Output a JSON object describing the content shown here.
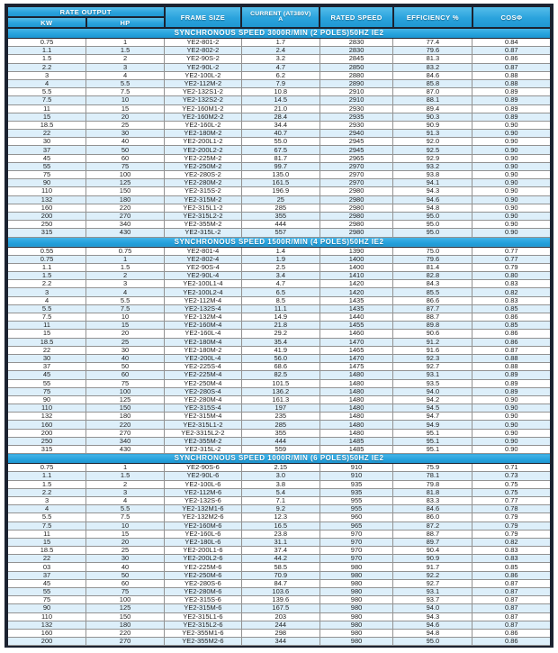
{
  "table": {
    "headers": {
      "rate_output": "RATE OUTPUT",
      "kw": "KW",
      "hp": "HP",
      "frame_size": "FRAME SIZE",
      "current_line1": "CURRENT  (AT380V)",
      "current_line2": "A",
      "rated_speed": "RATED SPEED",
      "efficiency": "EFFICIENCY %",
      "cos_phi": "COSΦ"
    },
    "column_keys": [
      "kw",
      "hp",
      "frame-size",
      "current",
      "rated-speed",
      "efficiency",
      "cos-phi"
    ],
    "sections": [
      {
        "title": "SYNCHRONOUS SPEED 3000R/MIN (2 POLES)50HZ  IE2",
        "rows": [
          [
            "0.75",
            "1",
            "YE2-801-2",
            "1.7",
            "2830",
            "77.4",
            "0.84"
          ],
          [
            "1.1",
            "1.5",
            "YE2-802-2",
            "2.4",
            "2830",
            "79.6",
            "0.87"
          ],
          [
            "1.5",
            "2",
            "YE2-90S-2",
            "3.2",
            "2845",
            "81.3",
            "0.86"
          ],
          [
            "2.2",
            "3",
            "YE2-90L-2",
            "4.7",
            "2850",
            "83.2",
            "0.87"
          ],
          [
            "3",
            "4",
            "YE2-100L-2",
            "6.2",
            "2880",
            "84.6",
            "0.88"
          ],
          [
            "4",
            "5.5",
            "YE2-112M-2",
            "7.9",
            "2890",
            "85.8",
            "0.88"
          ],
          [
            "5.5",
            "7.5",
            "YE2-132S1-2",
            "10.8",
            "2910",
            "87.0",
            "0.89"
          ],
          [
            "7.5",
            "10",
            "YE2-132S2-2",
            "14.5",
            "2910",
            "88.1",
            "0.89"
          ],
          [
            "11",
            "15",
            "YE2-160M1-2",
            "21.0",
            "2930",
            "89.4",
            "0.89"
          ],
          [
            "15",
            "20",
            "YE2-160M2-2",
            "28.4",
            "2935",
            "90.3",
            "0.89"
          ],
          [
            "18.5",
            "25",
            "YE2-160L-2",
            "34.4",
            "2930",
            "90.9",
            "0.90"
          ],
          [
            "22",
            "30",
            "YE2-180M-2",
            "40.7",
            "2940",
            "91.3",
            "0.90"
          ],
          [
            "30",
            "40",
            "YE2-200L1-2",
            "55.0",
            "2945",
            "92.0",
            "0.90"
          ],
          [
            "37",
            "50",
            "YE2-200L2-2",
            "67.5",
            "2945",
            "92.5",
            "0.90"
          ],
          [
            "45",
            "60",
            "YE2-225M-2",
            "81.7",
            "2965",
            "92.9",
            "0.90"
          ],
          [
            "55",
            "75",
            "YE2-250M-2",
            "99.7",
            "2970",
            "93.2",
            "0.90"
          ],
          [
            "75",
            "100",
            "YE2-280S-2",
            "135.0",
            "2970",
            "93.8",
            "0.90"
          ],
          [
            "90",
            "125",
            "YE2-280M-2",
            "161.5",
            "2970",
            "94.1",
            "0.90"
          ],
          [
            "110",
            "150",
            "YE2-315S-2",
            "196.9",
            "2980",
            "94.3",
            "0.90"
          ],
          [
            "132",
            "180",
            "YE2-315M-2",
            "25",
            "2980",
            "94.6",
            "0.90"
          ],
          [
            "160",
            "220",
            "YE2-315L1-2",
            "285",
            "2980",
            "94.8",
            "0.90"
          ],
          [
            "200",
            "270",
            "YE2-315L2-2",
            "355",
            "2980",
            "95.0",
            "0.90"
          ],
          [
            "250",
            "340",
            "YE2-355M-2",
            "444",
            "2980",
            "95.0",
            "0.90"
          ],
          [
            "315",
            "430",
            "YE2-315L-2",
            "557",
            "2980",
            "95.0",
            "0.90"
          ]
        ]
      },
      {
        "title": "SYNCHRONOUS SPEED 1500R/MIN (4 POLES)50HZ  IE2",
        "rows": [
          [
            "0.55",
            "0.75",
            "YE2-801-4",
            "1.4",
            "1390",
            "75.0",
            "0.77"
          ],
          [
            "0.75",
            "1",
            "YE2-802-4",
            "1.9",
            "1400",
            "79.6",
            "0.77"
          ],
          [
            "1.1",
            "1.5",
            "YE2-90S-4",
            "2.5",
            "1400",
            "81.4",
            "0.79"
          ],
          [
            "1.5",
            "2",
            "YE2-90L-4",
            "3.4",
            "1410",
            "82.8",
            "0.80"
          ],
          [
            "2.2",
            "3",
            "YE2-100L1-4",
            "4.7",
            "1420",
            "84.3",
            "0.83"
          ],
          [
            "3",
            "4",
            "YE2-100L2-4",
            "6.5",
            "1420",
            "85.5",
            "0.82"
          ],
          [
            "4",
            "5.5",
            "YE2-112M-4",
            "8.5",
            "1435",
            "86.6",
            "0.83"
          ],
          [
            "5.5",
            "7.5",
            "YE2-132S-4",
            "11.1",
            "1435",
            "87.7",
            "0.85"
          ],
          [
            "7.5",
            "10",
            "YE2-132M-4",
            "14.9",
            "1440",
            "88.7",
            "0.86"
          ],
          [
            "11",
            "15",
            "YE2-160M-4",
            "21.8",
            "1455",
            "89.8",
            "0.85"
          ],
          [
            "15",
            "20",
            "YE2-160L-4",
            "29.2",
            "1460",
            "90.6",
            "0.86"
          ],
          [
            "18.5",
            "25",
            "YE2-180M-4",
            "35.4",
            "1470",
            "91.2",
            "0.86"
          ],
          [
            "22",
            "30",
            "YE2-180M-2",
            "41.9",
            "1465",
            "91.6",
            "0.87"
          ],
          [
            "30",
            "40",
            "YE2-200L-4",
            "56.0",
            "1470",
            "92.3",
            "0.88"
          ],
          [
            "37",
            "50",
            "YE2-225S-4",
            "68.6",
            "1475",
            "92.7",
            "0.88"
          ],
          [
            "45",
            "60",
            "YE2-225M-4",
            "82.5",
            "1480",
            "93.1",
            "0.89"
          ],
          [
            "55",
            "75",
            "YE2-250M-4",
            "101.5",
            "1480",
            "93.5",
            "0.89"
          ],
          [
            "75",
            "100",
            "YE2-280S-4",
            "136.2",
            "1480",
            "94.0",
            "0.89"
          ],
          [
            "90",
            "125",
            "YE2-280M-4",
            "161.3",
            "1480",
            "94.2",
            "0.90"
          ],
          [
            "110",
            "150",
            "YE2-315S-4",
            "197",
            "1480",
            "94.5",
            "0.90"
          ],
          [
            "132",
            "180",
            "YE2-315M-4",
            "235",
            "1480",
            "94.7",
            "0.90"
          ],
          [
            "160",
            "220",
            "YE2-315L1-2",
            "285",
            "1480",
            "94.9",
            "0.90"
          ],
          [
            "200",
            "270",
            "YE2-3315L2-2",
            "355",
            "1480",
            "95.1",
            "0.90"
          ],
          [
            "250",
            "340",
            "YE2-355M-2",
            "444",
            "1485",
            "95.1",
            "0.90"
          ],
          [
            "315",
            "430",
            "YE2-315L-2",
            "559",
            "1485",
            "95.1",
            "0.90"
          ]
        ]
      },
      {
        "title": "SYNCHRONOUS SPEED 1000R/MIN (6 POLES)50HZ  IE2",
        "rows": [
          [
            "0.75",
            "1",
            "YE2-90S-6",
            "2.15",
            "910",
            "75.9",
            "0.71"
          ],
          [
            "1.1",
            "1.5",
            "YE2-90L-6",
            "3.0",
            "910",
            "78.1",
            "0.73"
          ],
          [
            "1.5",
            "2",
            "YE2-100L-6",
            "3.8",
            "935",
            "79.8",
            "0.75"
          ],
          [
            "2.2",
            "3",
            "YE2-112M-6",
            "5.4",
            "935",
            "81.8",
            "0.75"
          ],
          [
            "3",
            "4",
            "YE2-132S-6",
            "7.1",
            "955",
            "83.3",
            "0.77"
          ],
          [
            "4",
            "5.5",
            "YE2-132M1-6",
            "9.2",
            "955",
            "84.6",
            "0.78"
          ],
          [
            "5.5",
            "7.5",
            "YE2-132M2-6",
            "12.3",
            "960",
            "86.0",
            "0.79"
          ],
          [
            "7.5",
            "10",
            "YE2-160M-6",
            "16.5",
            "965",
            "87.2",
            "0.79"
          ],
          [
            "11",
            "15",
            "YE2-160L-6",
            "23.8",
            "970",
            "88.7",
            "0.79"
          ],
          [
            "15",
            "20",
            "YE2-180L-6",
            "31.1",
            "970",
            "89.7",
            "0.82"
          ],
          [
            "18.5",
            "25",
            "YE2-200L1-6",
            "37.4",
            "970",
            "90.4",
            "0.83"
          ],
          [
            "22",
            "30",
            "YE2-200L2-6",
            "44.2",
            "970",
            "90.9",
            "0.83"
          ],
          [
            "03",
            "40",
            "YE2-225M-6",
            "58.5",
            "980",
            "91.7",
            "0.85"
          ],
          [
            "37",
            "50",
            "YE2-250M-6",
            "70.9",
            "980",
            "92.2",
            "0.86"
          ],
          [
            "45",
            "60",
            "YE2-280S-6",
            "84.7",
            "980",
            "92.7",
            "0.87"
          ],
          [
            "55",
            "75",
            "YE2-280M-6",
            "103.6",
            "980",
            "93.1",
            "0.87"
          ],
          [
            "75",
            "100",
            "YE2-315S-6",
            "139.6",
            "980",
            "93.7",
            "0.87"
          ],
          [
            "90",
            "125",
            "YE2-315M-6",
            "167.5",
            "980",
            "94.0",
            "0.87"
          ],
          [
            "110",
            "150",
            "YE2-315L1-6",
            "203",
            "980",
            "94.3",
            "0.87"
          ],
          [
            "132",
            "180",
            "YE2-315L2-6",
            "244",
            "980",
            "94.6",
            "0.87"
          ],
          [
            "160",
            "220",
            "YE2-355M1-6",
            "298",
            "980",
            "94.8",
            "0.86"
          ],
          [
            "200",
            "270",
            "YE2-355M2-6",
            "344",
            "980",
            "95.0",
            "0.86"
          ]
        ]
      }
    ]
  },
  "colors": {
    "header_blue": "#2aa3dd",
    "band_blue": "#25a1dc",
    "row_alt_blue": "#ddeffa",
    "border_dark": "#1b2230",
    "border_gray": "#929292"
  }
}
